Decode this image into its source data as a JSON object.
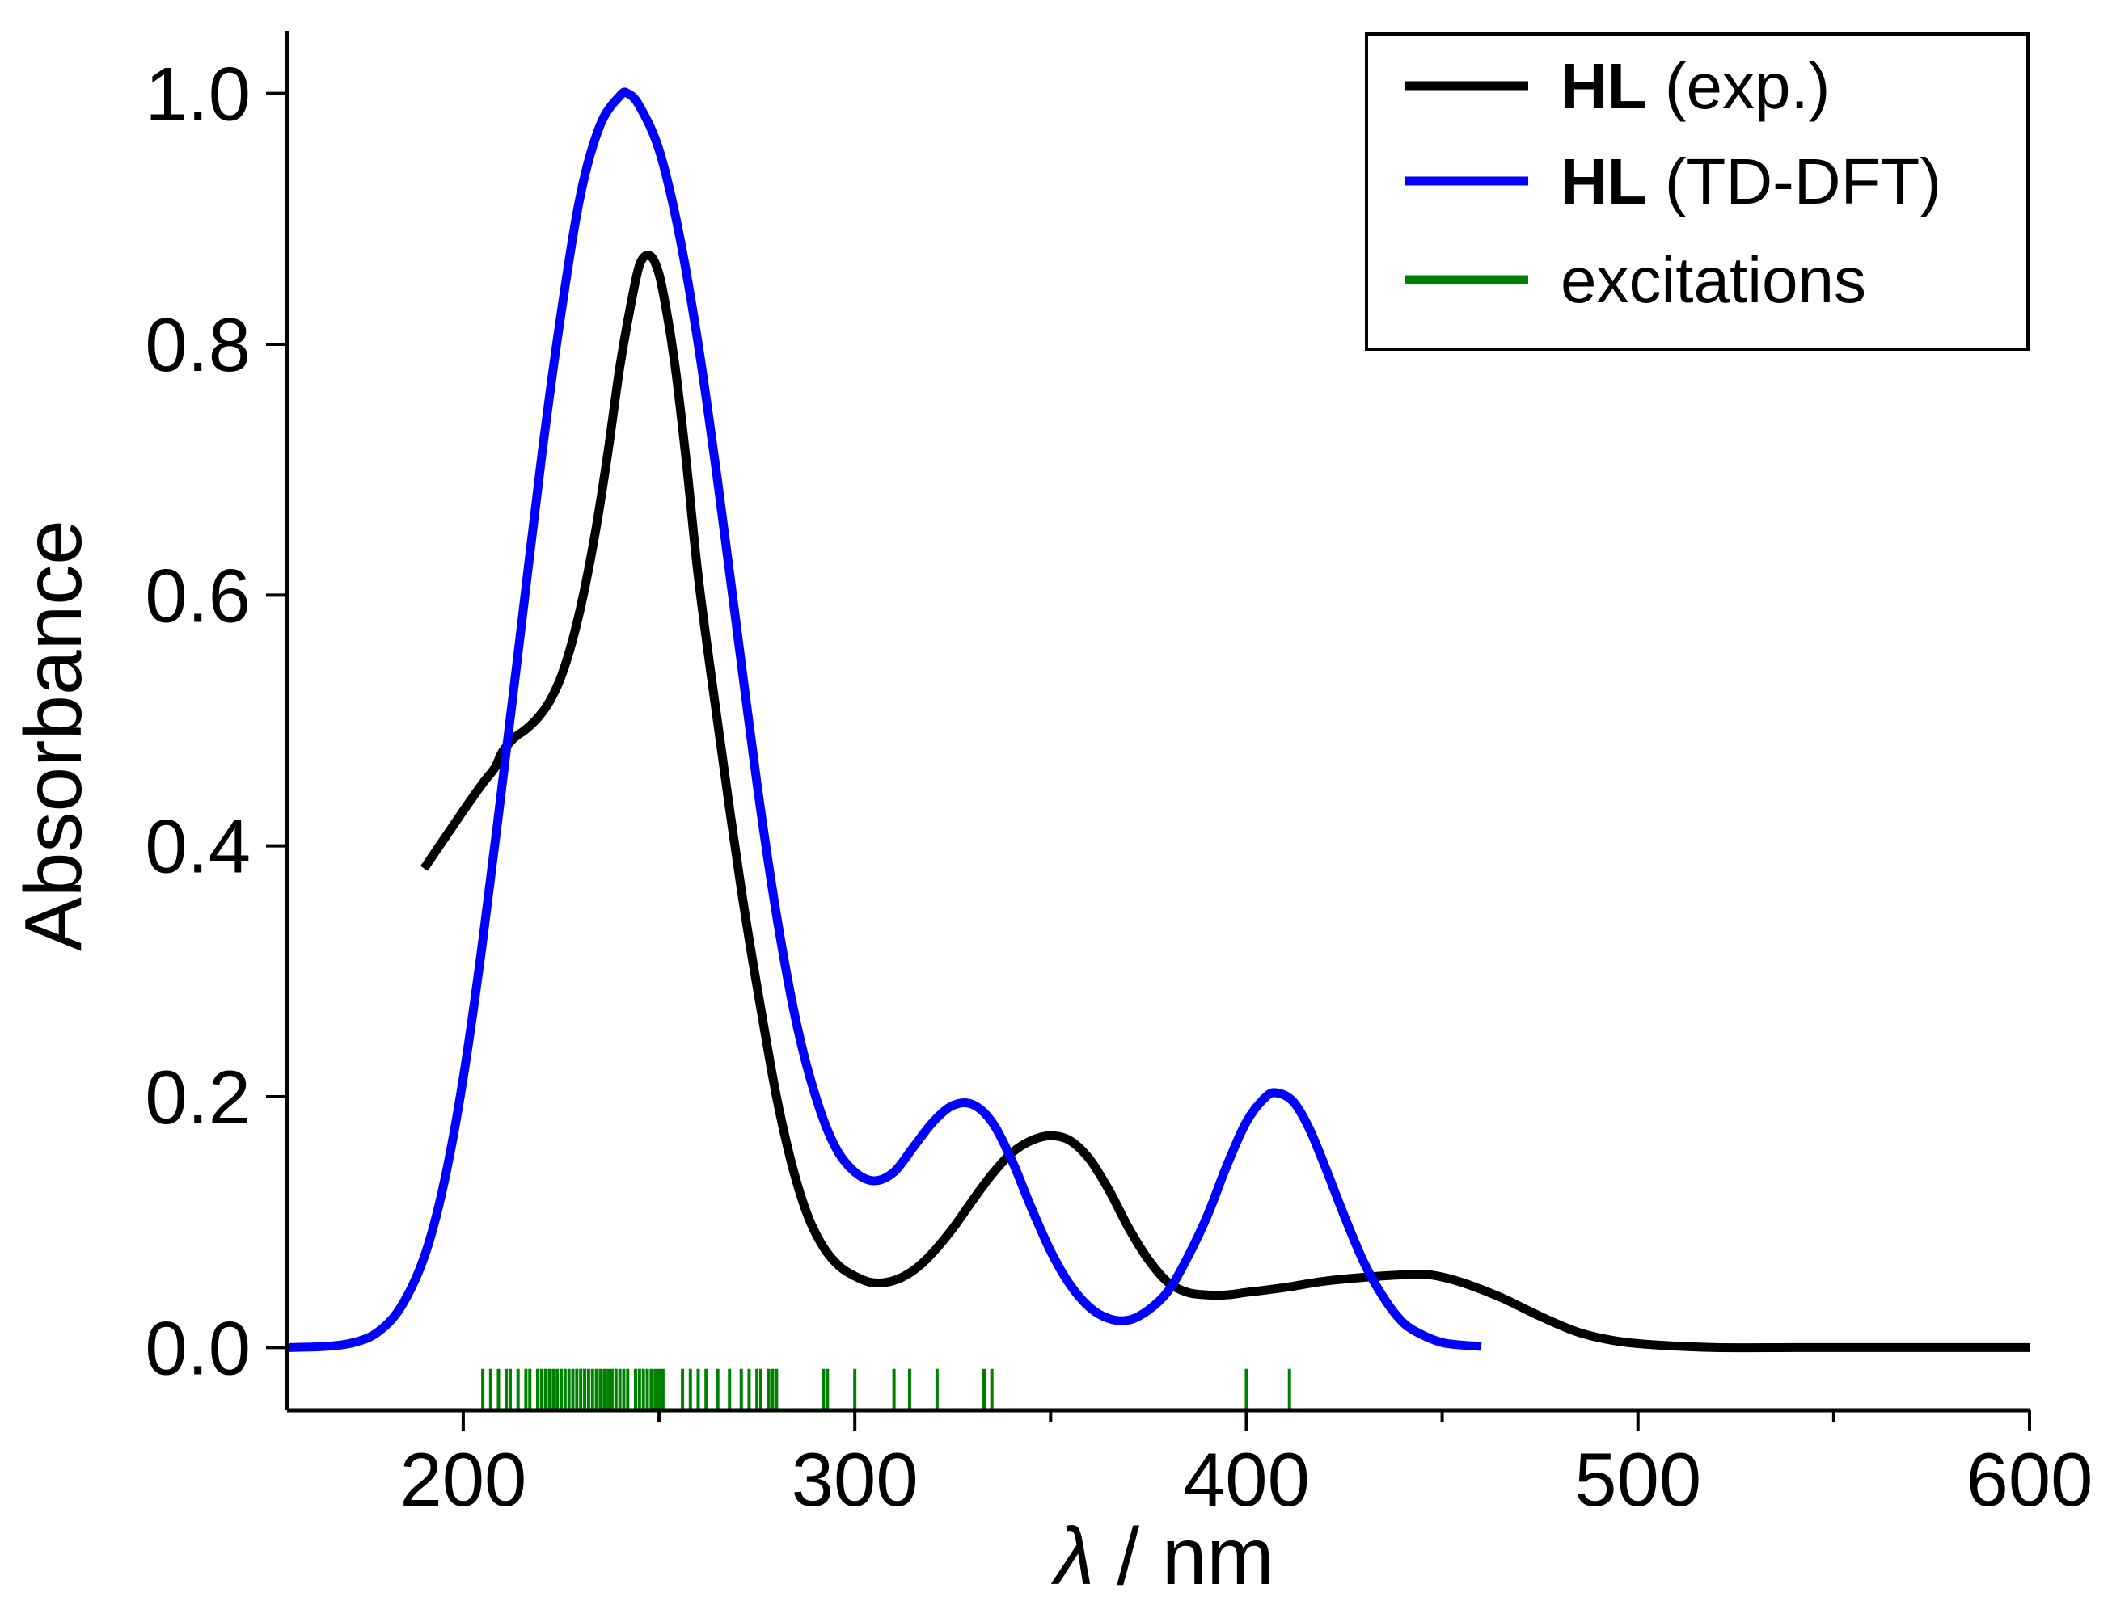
{
  "chart_data": {
    "type": "line",
    "xlabel_symbol": "λ",
    "xlabel_unit": " / nm",
    "ylabel": "Absorbance",
    "xlim": [
      155,
      600
    ],
    "ylim": [
      -0.05,
      1.05
    ],
    "x_ticks": [
      "200",
      "300",
      "400",
      "500",
      "600"
    ],
    "x_tick_values": [
      200,
      300,
      400,
      500,
      600
    ],
    "x_minor_ticks": [
      250,
      350,
      450,
      550
    ],
    "y_ticks": [
      "0.0",
      "0.2",
      "0.4",
      "0.6",
      "0.8",
      "1.0"
    ],
    "y_tick_values": [
      0.0,
      0.2,
      0.4,
      0.6,
      0.8,
      1.0
    ],
    "legend_position": "top-right",
    "series": [
      {
        "name": "HL (exp.)",
        "legend_bold": "HL",
        "legend_rest": " (exp.)",
        "color": "#000000",
        "points": [
          [
            190,
            0.382
          ],
          [
            195,
            0.405
          ],
          [
            200,
            0.428
          ],
          [
            205,
            0.45
          ],
          [
            208,
            0.462
          ],
          [
            210,
            0.475
          ],
          [
            213,
            0.486
          ],
          [
            216,
            0.493
          ],
          [
            219,
            0.502
          ],
          [
            222,
            0.515
          ],
          [
            225,
            0.535
          ],
          [
            228,
            0.565
          ],
          [
            231,
            0.605
          ],
          [
            234,
            0.655
          ],
          [
            237,
            0.715
          ],
          [
            240,
            0.782
          ],
          [
            243,
            0.835
          ],
          [
            245,
            0.863
          ],
          [
            247,
            0.871
          ],
          [
            249,
            0.865
          ],
          [
            251,
            0.842
          ],
          [
            254,
            0.785
          ],
          [
            257,
            0.705
          ],
          [
            260,
            0.615
          ],
          [
            264,
            0.52
          ],
          [
            268,
            0.43
          ],
          [
            272,
            0.345
          ],
          [
            276,
            0.27
          ],
          [
            280,
            0.2
          ],
          [
            284,
            0.145
          ],
          [
            288,
            0.105
          ],
          [
            292,
            0.08
          ],
          [
            296,
            0.065
          ],
          [
            300,
            0.057
          ],
          [
            304,
            0.052
          ],
          [
            308,
            0.052
          ],
          [
            312,
            0.056
          ],
          [
            316,
            0.064
          ],
          [
            320,
            0.076
          ],
          [
            325,
            0.095
          ],
          [
            330,
            0.117
          ],
          [
            335,
            0.138
          ],
          [
            340,
            0.155
          ],
          [
            345,
            0.165
          ],
          [
            350,
            0.169
          ],
          [
            355,
            0.165
          ],
          [
            360,
            0.15
          ],
          [
            365,
            0.125
          ],
          [
            370,
            0.095
          ],
          [
            375,
            0.07
          ],
          [
            380,
            0.052
          ],
          [
            385,
            0.044
          ],
          [
            390,
            0.042
          ],
          [
            395,
            0.042
          ],
          [
            400,
            0.044
          ],
          [
            410,
            0.048
          ],
          [
            420,
            0.053
          ],
          [
            430,
            0.056
          ],
          [
            440,
            0.058
          ],
          [
            447,
            0.058
          ],
          [
            455,
            0.052
          ],
          [
            465,
            0.04
          ],
          [
            475,
            0.025
          ],
          [
            485,
            0.012
          ],
          [
            495,
            0.005
          ],
          [
            505,
            0.002
          ],
          [
            520,
            0.0
          ],
          [
            540,
            0.0
          ],
          [
            560,
            0.0
          ],
          [
            580,
            0.0
          ],
          [
            600,
            0.0
          ]
        ]
      },
      {
        "name": "HL (TD-DFT)",
        "legend_bold": "HL",
        "legend_rest": " (TD-DFT)",
        "color": "#0000ff",
        "points": [
          [
            155,
            0.0
          ],
          [
            165,
            0.001
          ],
          [
            172,
            0.004
          ],
          [
            178,
            0.012
          ],
          [
            184,
            0.032
          ],
          [
            190,
            0.072
          ],
          [
            195,
            0.13
          ],
          [
            200,
            0.215
          ],
          [
            205,
            0.325
          ],
          [
            210,
            0.45
          ],
          [
            215,
            0.58
          ],
          [
            220,
            0.71
          ],
          [
            225,
            0.825
          ],
          [
            230,
            0.92
          ],
          [
            235,
            0.975
          ],
          [
            240,
            0.998
          ],
          [
            242,
            1.0
          ],
          [
            245,
            0.99
          ],
          [
            250,
            0.955
          ],
          [
            255,
            0.89
          ],
          [
            260,
            0.8
          ],
          [
            265,
            0.69
          ],
          [
            270,
            0.57
          ],
          [
            275,
            0.45
          ],
          [
            280,
            0.345
          ],
          [
            285,
            0.26
          ],
          [
            290,
            0.2
          ],
          [
            295,
            0.16
          ],
          [
            300,
            0.14
          ],
          [
            305,
            0.133
          ],
          [
            310,
            0.14
          ],
          [
            315,
            0.16
          ],
          [
            320,
            0.18
          ],
          [
            325,
            0.193
          ],
          [
            330,
            0.194
          ],
          [
            335,
            0.18
          ],
          [
            340,
            0.15
          ],
          [
            345,
            0.112
          ],
          [
            350,
            0.077
          ],
          [
            355,
            0.05
          ],
          [
            360,
            0.032
          ],
          [
            365,
            0.023
          ],
          [
            370,
            0.022
          ],
          [
            375,
            0.03
          ],
          [
            380,
            0.045
          ],
          [
            385,
            0.072
          ],
          [
            390,
            0.105
          ],
          [
            395,
            0.145
          ],
          [
            400,
            0.18
          ],
          [
            405,
            0.2
          ],
          [
            408,
            0.203
          ],
          [
            412,
            0.196
          ],
          [
            416,
            0.175
          ],
          [
            420,
            0.145
          ],
          [
            425,
            0.105
          ],
          [
            430,
            0.068
          ],
          [
            435,
            0.04
          ],
          [
            440,
            0.02
          ],
          [
            445,
            0.01
          ],
          [
            450,
            0.004
          ],
          [
            455,
            0.002
          ],
          [
            460,
            0.001
          ]
        ]
      }
    ],
    "excitations": {
      "name": "excitations",
      "color": "#008000",
      "base": -0.05,
      "top": -0.017,
      "wavelengths": [
        205,
        207,
        209,
        211,
        212,
        214,
        216,
        217,
        219,
        220,
        221,
        222,
        223,
        224,
        225,
        226,
        227,
        228,
        229,
        230,
        231,
        232,
        233,
        234,
        235,
        236,
        237,
        238,
        239,
        240,
        241,
        242,
        244,
        245,
        246,
        247,
        248,
        249,
        250,
        251,
        256,
        258,
        260,
        262,
        265,
        268,
        271,
        273,
        275,
        276,
        278,
        279,
        280,
        292,
        293,
        300,
        310,
        314,
        321,
        333,
        335,
        400,
        411
      ]
    }
  }
}
